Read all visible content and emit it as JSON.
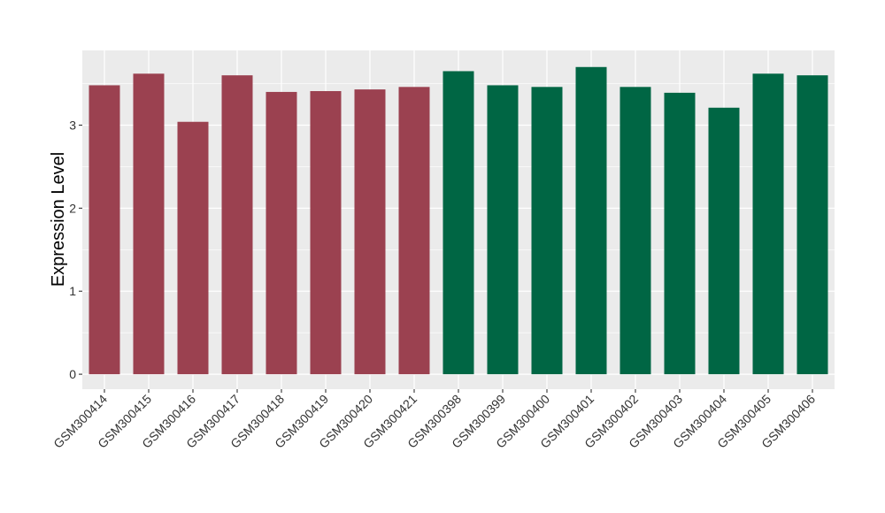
{
  "chart_data": {
    "type": "bar",
    "title": "",
    "xlabel": "",
    "ylabel": "Expression Level",
    "ylim": [
      -0.18,
      3.9
    ],
    "yticks": [
      0,
      1,
      2,
      3
    ],
    "grid": true,
    "legend": "none",
    "categories": [
      "GSM300414",
      "GSM300415",
      "GSM300416",
      "GSM300417",
      "GSM300418",
      "GSM300419",
      "GSM300420",
      "GSM300421",
      "GSM300398",
      "GSM300399",
      "GSM300400",
      "GSM300401",
      "GSM300402",
      "GSM300403",
      "GSM300404",
      "GSM300405",
      "GSM300406"
    ],
    "values": [
      3.48,
      3.62,
      3.04,
      3.6,
      3.4,
      3.41,
      3.43,
      3.46,
      3.65,
      3.48,
      3.46,
      3.7,
      3.46,
      3.39,
      3.21,
      3.62,
      3.6
    ],
    "bar_colors": [
      "#9b4150",
      "#9b4150",
      "#9b4150",
      "#9b4150",
      "#9b4150",
      "#9b4150",
      "#9b4150",
      "#9b4150",
      "#006644",
      "#006644",
      "#006644",
      "#006644",
      "#006644",
      "#006644",
      "#006644",
      "#006644",
      "#006644"
    ],
    "panel_background": "#ebebeb",
    "grid_color": "#ffffff"
  }
}
